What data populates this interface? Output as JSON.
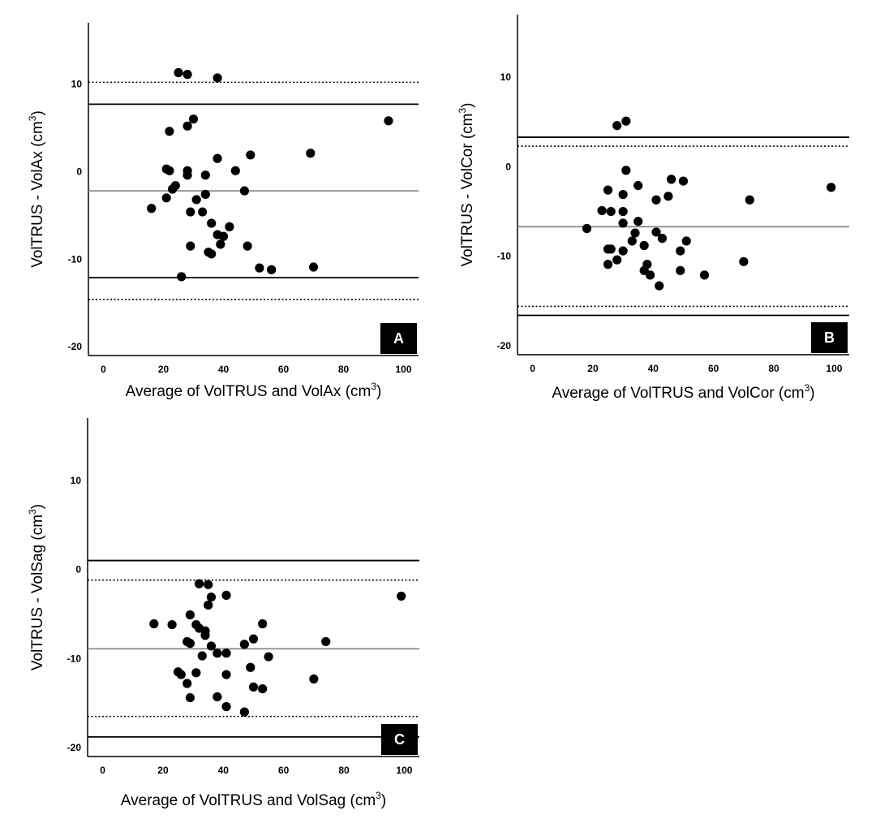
{
  "chart_data": [
    {
      "type": "scatter",
      "panel_label": "A",
      "title": "",
      "xlabel_main": "Average of VolTRUS and VolAx  (cm",
      "ylabel_main": "VolTRUS - VolAx (cm",
      "label_sup": "3",
      "label_close": ")",
      "xlim": [
        -5,
        105
      ],
      "ylim": [
        -21,
        17
      ],
      "xticks": [
        0,
        20,
        40,
        60,
        80,
        100
      ],
      "yticks": [
        -20,
        -10,
        0,
        10
      ],
      "lines": [
        {
          "kind": "mean",
          "y": -2.2,
          "color": "#8c8c8c",
          "style": "solid"
        },
        {
          "kind": "limit-upper",
          "y": 7.7,
          "color": "#000000",
          "style": "solid"
        },
        {
          "kind": "limit-lower",
          "y": -12.1,
          "color": "#000000",
          "style": "solid"
        },
        {
          "kind": "ci-upper",
          "y": 10.2,
          "color": "#000000",
          "style": "dotted"
        },
        {
          "kind": "ci-lower",
          "y": -14.6,
          "color": "#000000",
          "style": "dotted"
        }
      ],
      "points": [
        [
          25,
          11.3
        ],
        [
          28,
          11.1
        ],
        [
          38,
          10.7
        ],
        [
          95,
          5.8
        ],
        [
          30,
          6.0
        ],
        [
          22,
          4.6
        ],
        [
          28,
          5.2
        ],
        [
          69,
          2.1
        ],
        [
          49,
          1.9
        ],
        [
          38,
          1.5
        ],
        [
          21,
          0.3
        ],
        [
          22,
          0.1
        ],
        [
          28,
          0.1
        ],
        [
          44,
          0.1
        ],
        [
          28,
          -0.4
        ],
        [
          34,
          -0.4
        ],
        [
          24,
          -1.6
        ],
        [
          23,
          -2.0
        ],
        [
          47,
          -2.2
        ],
        [
          34,
          -2.6
        ],
        [
          21,
          -3.0
        ],
        [
          31,
          -3.2
        ],
        [
          16,
          -4.2
        ],
        [
          29,
          -4.6
        ],
        [
          33,
          -4.6
        ],
        [
          36,
          -5.9
        ],
        [
          42,
          -6.3
        ],
        [
          40,
          -7.4
        ],
        [
          38,
          -7.2
        ],
        [
          39,
          -8.3
        ],
        [
          29,
          -8.5
        ],
        [
          48,
          -8.5
        ],
        [
          35,
          -9.2
        ],
        [
          36,
          -9.4
        ],
        [
          52,
          -11.0
        ],
        [
          56,
          -11.2
        ],
        [
          70,
          -10.9
        ],
        [
          26,
          -12.0
        ]
      ]
    },
    {
      "type": "scatter",
      "panel_label": "B",
      "title": "",
      "xlabel_main": "Average of VolTRUS and VolCor (cm",
      "ylabel_main": "VolTRUS - VolCor (cm",
      "label_sup": "3",
      "label_close": ")",
      "xlim": [
        -5,
        105
      ],
      "ylim": [
        -21,
        17
      ],
      "xticks": [
        0,
        20,
        40,
        60,
        80,
        100
      ],
      "yticks": [
        -20,
        -10,
        0,
        10
      ],
      "lines": [
        {
          "kind": "mean",
          "y": -6.7,
          "color": "#8c8c8c",
          "style": "solid"
        },
        {
          "kind": "limit-upper",
          "y": 3.3,
          "color": "#000000",
          "style": "solid"
        },
        {
          "kind": "limit-lower",
          "y": -16.6,
          "color": "#000000",
          "style": "solid"
        },
        {
          "kind": "ci-upper",
          "y": 2.3,
          "color": "#000000",
          "style": "dotted"
        },
        {
          "kind": "ci-lower",
          "y": -15.6,
          "color": "#000000",
          "style": "dotted"
        }
      ],
      "points": [
        [
          28,
          4.6
        ],
        [
          31,
          5.1
        ],
        [
          31,
          -0.4
        ],
        [
          50,
          -1.6
        ],
        [
          46,
          -1.4
        ],
        [
          35,
          -2.1
        ],
        [
          99,
          -2.3
        ],
        [
          25,
          -2.6
        ],
        [
          30,
          -3.1
        ],
        [
          45,
          -3.3
        ],
        [
          41,
          -3.7
        ],
        [
          72,
          -3.7
        ],
        [
          23,
          -4.9
        ],
        [
          26,
          -5.0
        ],
        [
          30,
          -5.0
        ],
        [
          30,
          -6.3
        ],
        [
          35,
          -6.1
        ],
        [
          18,
          -6.9
        ],
        [
          41,
          -7.3
        ],
        [
          34,
          -7.4
        ],
        [
          43,
          -8.0
        ],
        [
          33,
          -8.3
        ],
        [
          51,
          -8.3
        ],
        [
          37,
          -8.8
        ],
        [
          25,
          -9.2
        ],
        [
          26,
          -9.2
        ],
        [
          30,
          -9.4
        ],
        [
          49,
          -9.4
        ],
        [
          28,
          -10.4
        ],
        [
          25,
          -10.9
        ],
        [
          70,
          -10.6
        ],
        [
          38,
          -10.9
        ],
        [
          37,
          -11.6
        ],
        [
          49,
          -11.6
        ],
        [
          39,
          -12.1
        ],
        [
          57,
          -12.1
        ],
        [
          42,
          -13.3
        ]
      ]
    },
    {
      "type": "scatter",
      "panel_label": "C",
      "title": "",
      "xlabel_main": "Average of VolTRUS and VolSag (cm",
      "ylabel_main": "VolTRUS - VolSag (cm",
      "label_sup": "3",
      "label_close": ")",
      "xlim": [
        -5,
        105
      ],
      "ylim": [
        -21,
        17
      ],
      "xticks": [
        0,
        20,
        40,
        60,
        80,
        100
      ],
      "yticks": [
        -20,
        -10,
        0,
        10
      ],
      "lines": [
        {
          "kind": "mean",
          "y": -8.9,
          "color": "#8c8c8c",
          "style": "solid"
        },
        {
          "kind": "limit-upper",
          "y": 1.0,
          "color": "#000000",
          "style": "solid"
        },
        {
          "kind": "limit-lower",
          "y": -18.8,
          "color": "#000000",
          "style": "solid"
        },
        {
          "kind": "ci-upper",
          "y": -1.2,
          "color": "#000000",
          "style": "dotted"
        },
        {
          "kind": "ci-lower",
          "y": -16.5,
          "color": "#000000",
          "style": "dotted"
        }
      ],
      "points": [
        [
          32,
          -1.6
        ],
        [
          35,
          -1.7
        ],
        [
          36,
          -3.1
        ],
        [
          41,
          -2.9
        ],
        [
          99,
          -3.0
        ],
        [
          35,
          -4.0
        ],
        [
          29,
          -5.1
        ],
        [
          17,
          -6.1
        ],
        [
          23,
          -6.2
        ],
        [
          31,
          -6.2
        ],
        [
          32,
          -6.6
        ],
        [
          34,
          -6.9
        ],
        [
          53,
          -6.1
        ],
        [
          34,
          -7.4
        ],
        [
          50,
          -7.8
        ],
        [
          28,
          -8.1
        ],
        [
          29,
          -8.3
        ],
        [
          36,
          -8.6
        ],
        [
          47,
          -8.4
        ],
        [
          74,
          -8.1
        ],
        [
          38,
          -9.4
        ],
        [
          41,
          -9.4
        ],
        [
          33,
          -9.7
        ],
        [
          55,
          -9.8
        ],
        [
          49,
          -11.0
        ],
        [
          25,
          -11.5
        ],
        [
          26,
          -11.8
        ],
        [
          31,
          -11.6
        ],
        [
          41,
          -11.8
        ],
        [
          70,
          -12.3
        ],
        [
          28,
          -12.8
        ],
        [
          50,
          -13.2
        ],
        [
          53,
          -13.4
        ],
        [
          29,
          -14.4
        ],
        [
          38,
          -14.3
        ],
        [
          41,
          -15.4
        ],
        [
          47,
          -16.0
        ]
      ]
    }
  ]
}
